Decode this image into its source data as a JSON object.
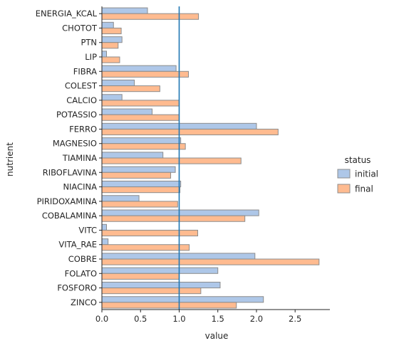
{
  "chart_data": {
    "type": "bar",
    "orientation": "horizontal",
    "xlabel": "value",
    "ylabel": "nutrient",
    "xlim": [
      0,
      2.95
    ],
    "xticks": [
      0.0,
      0.5,
      1.0,
      1.5,
      2.0,
      2.5
    ],
    "xtick_labels": [
      "0.0",
      "0.5",
      "1.0",
      "1.5",
      "2.0",
      "2.5"
    ],
    "reference_line": {
      "x": 1.0,
      "color": "#1f77b4"
    },
    "grid": false,
    "legend": {
      "title": "status",
      "placement": "right"
    },
    "categories": [
      "ENERGIA_KCAL",
      "CHOTOT",
      "PTN",
      "LIP",
      "FIBRA",
      "COLEST",
      "CALCIO",
      "POTASSIO",
      "FERRO",
      "MAGNESIO",
      "TIAMINA",
      "RIBOFLAVINA",
      "NIACINA",
      "PIRIDOXAMINA",
      "COBALAMINA",
      "VITC",
      "VITA_RAE",
      "COBRE",
      "FOLATO",
      "FOSFORO",
      "ZINCO"
    ],
    "series": [
      {
        "name": "initial",
        "color": "#aec7e8",
        "values": [
          0.59,
          0.15,
          0.26,
          0.06,
          0.96,
          0.42,
          0.26,
          0.65,
          2.0,
          1.02,
          0.79,
          0.95,
          1.02,
          0.48,
          2.03,
          0.06,
          0.08,
          1.98,
          1.5,
          1.53,
          2.09
        ]
      },
      {
        "name": "final",
        "color": "#ffbb90",
        "values": [
          1.25,
          0.25,
          0.21,
          0.23,
          1.12,
          0.75,
          1.0,
          1.0,
          2.28,
          1.08,
          1.8,
          0.89,
          1.01,
          0.98,
          1.85,
          1.24,
          1.13,
          2.81,
          1.0,
          1.28,
          1.74
        ]
      }
    ]
  }
}
